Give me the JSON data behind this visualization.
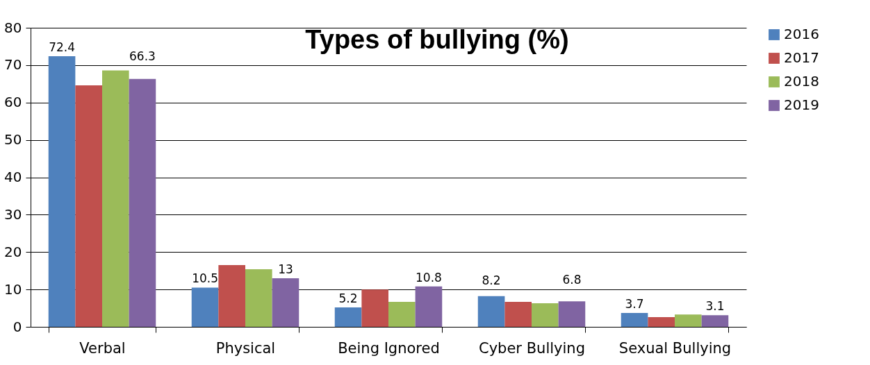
{
  "chart_data": {
    "type": "bar",
    "title": "Types of bullying (%)",
    "categories": [
      "Verbal",
      "Physical",
      "Being Ignored",
      "Cyber Bullying",
      "Sexual Bullying"
    ],
    "series": [
      {
        "name": "2016",
        "color": "#4f81bd",
        "values": [
          72.4,
          10.5,
          5.2,
          8.2,
          3.7
        ],
        "value_labels": [
          "72.4",
          "10.5",
          "5.2",
          "8.2",
          "3.7"
        ]
      },
      {
        "name": "2017",
        "color": "#c0504d",
        "values": [
          64.6,
          16.5,
          10.0,
          6.7,
          2.6
        ]
      },
      {
        "name": "2018",
        "color": "#9bbb59",
        "values": [
          68.6,
          15.4,
          6.7,
          6.3,
          3.3
        ]
      },
      {
        "name": "2019",
        "color": "#8064a2",
        "values": [
          66.3,
          13,
          10.8,
          6.8,
          3.1
        ],
        "value_labels": [
          "66.3",
          "13",
          "10.8",
          "6.8",
          "3.1"
        ]
      }
    ],
    "ylim": [
      0,
      80
    ],
    "yticks": [
      0,
      10,
      20,
      30,
      40,
      50,
      60,
      70,
      80
    ],
    "grid": "y",
    "legend": "right"
  }
}
